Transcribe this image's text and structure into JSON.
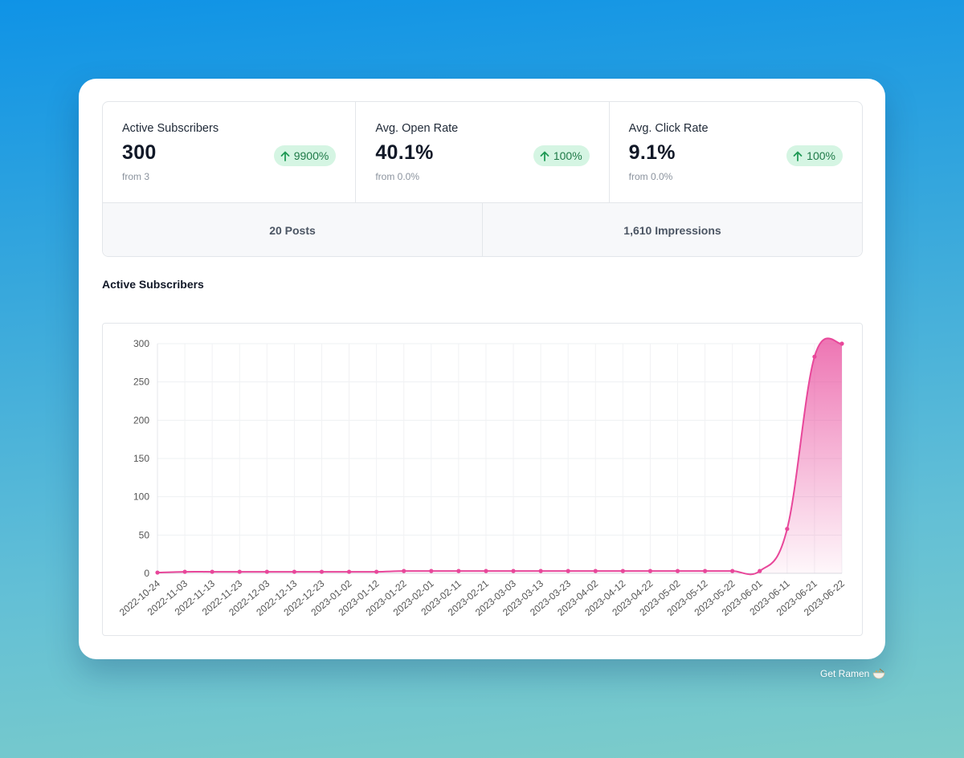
{
  "stats": [
    {
      "label": "Active Subscribers",
      "value": "300",
      "from": "from 3",
      "change": "9900%"
    },
    {
      "label": "Avg. Open Rate",
      "value": "40.1%",
      "from": "from 0.0%",
      "change": "100%"
    },
    {
      "label": "Avg. Click Rate",
      "value": "9.1%",
      "from": "from 0.0%",
      "change": "100%"
    }
  ],
  "summary": {
    "posts": "20 Posts",
    "impressions": "1,610 Impressions"
  },
  "section_title": "Active Subscribers",
  "footer": {
    "label": "Get Ramen",
    "icon": "ramen-bowl-icon"
  },
  "colors": {
    "accent": "#e8479a",
    "badge_bg": "#d5f5e3",
    "badge_text": "#1f7a48"
  },
  "chart_data": {
    "type": "area",
    "title": "Active Subscribers",
    "xlabel": "",
    "ylabel": "",
    "ylim": [
      0,
      300
    ],
    "yticks": [
      0,
      50,
      100,
      150,
      200,
      250,
      300
    ],
    "x": [
      "2022-10-24",
      "2022-11-03",
      "2022-11-13",
      "2022-11-23",
      "2022-12-03",
      "2022-12-13",
      "2022-12-23",
      "2023-01-02",
      "2023-01-12",
      "2023-01-22",
      "2023-02-01",
      "2023-02-11",
      "2023-02-21",
      "2023-03-03",
      "2023-03-13",
      "2023-03-23",
      "2023-04-02",
      "2023-04-12",
      "2023-04-22",
      "2023-05-02",
      "2023-05-12",
      "2023-05-22",
      "2023-06-01",
      "2023-06-11",
      "2023-06-21",
      "2023-06-22"
    ],
    "series": [
      {
        "name": "Active Subscribers",
        "values": [
          1,
          2,
          2,
          2,
          2,
          2,
          2,
          2,
          2,
          3,
          3,
          3,
          3,
          3,
          3,
          3,
          3,
          3,
          3,
          3,
          3,
          3,
          3,
          58,
          283,
          300
        ]
      }
    ]
  }
}
